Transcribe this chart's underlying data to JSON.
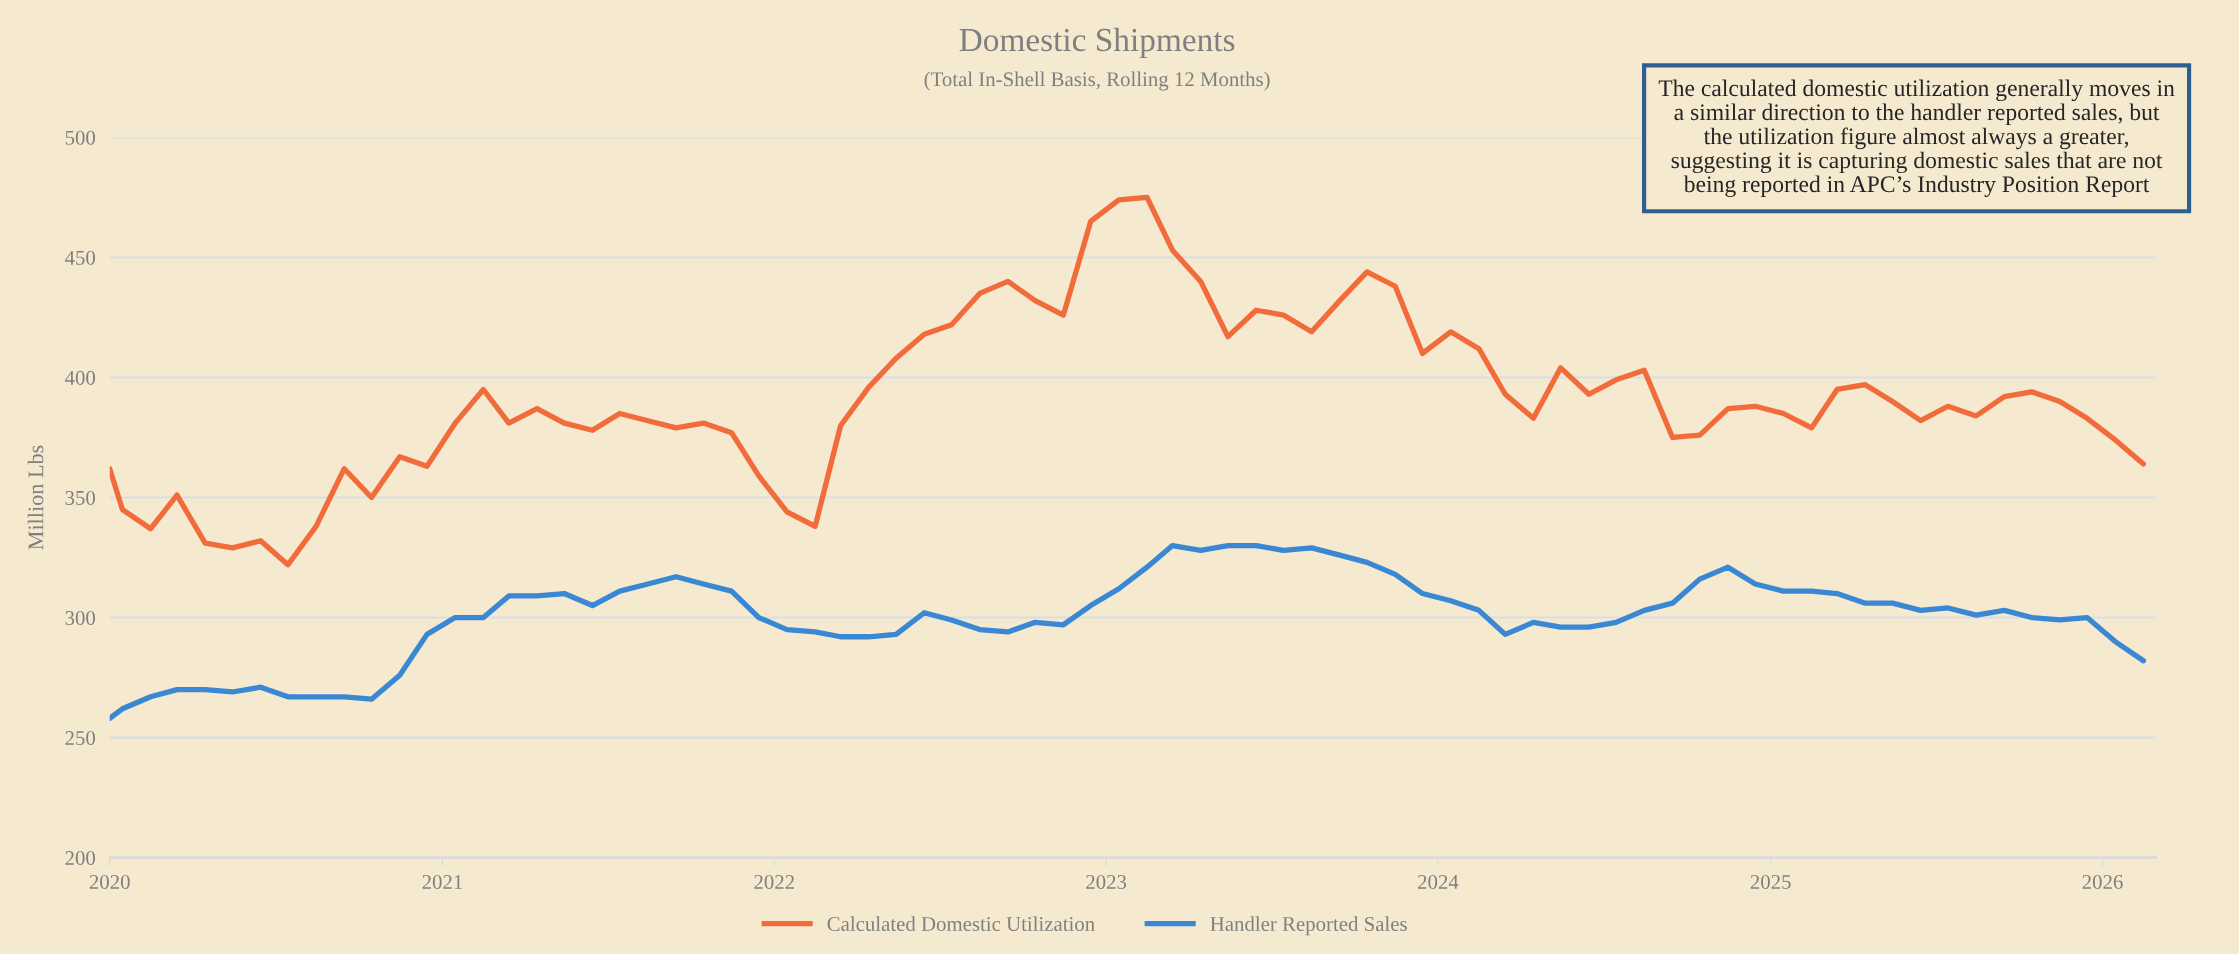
{
  "chart_data": {
    "type": "line",
    "title": "Domestic Shipments",
    "subtitle": "(Total In-Shell Basis, Rolling 12 Months)",
    "ylabel": "Million Lbs",
    "annotations": [
      "The calculated domestic utilization generally moves in a similar direction to the handler reported sales, but the utilization figure almost always a greater, suggesting it is capturing domestic sales that are not being reported in APC’s Industry Position Report"
    ],
    "x": [
      "2020-01-01",
      "2020-01-15",
      "2020-02-15",
      "2020-03-15",
      "2020-04-15",
      "2020-05-15",
      "2020-06-15",
      "2020-07-15",
      "2020-08-15",
      "2020-09-15",
      "2020-10-15",
      "2020-11-15",
      "2020-12-15",
      "2021-01-15",
      "2021-02-15",
      "2021-03-15",
      "2021-04-15",
      "2021-05-15",
      "2021-06-15",
      "2021-07-15",
      "2021-08-15",
      "2021-09-15",
      "2021-10-15",
      "2021-11-15",
      "2021-12-15",
      "2022-01-15",
      "2022-02-15",
      "2022-03-15",
      "2022-04-15",
      "2022-05-15",
      "2022-06-15",
      "2022-07-15",
      "2022-08-15",
      "2022-09-15",
      "2022-10-15",
      "2022-11-15",
      "2022-12-15",
      "2023-01-15",
      "2023-02-15",
      "2023-03-15",
      "2023-04-15",
      "2023-05-15",
      "2023-06-15",
      "2023-07-15",
      "2023-08-15",
      "2023-09-15",
      "2023-10-15",
      "2023-11-15",
      "2023-12-15",
      "2024-01-15",
      "2024-02-15",
      "2024-03-15",
      "2024-04-15",
      "2024-05-15",
      "2024-06-15",
      "2024-07-15",
      "2024-08-15",
      "2024-09-15",
      "2024-10-15",
      "2024-11-15",
      "2024-12-15",
      "2025-01-15",
      "2025-02-15",
      "2025-03-15",
      "2025-04-15",
      "2025-05-15",
      "2025-06-15",
      "2025-07-15",
      "2025-08-15",
      "2025-09-15",
      "2025-10-15",
      "2025-11-15",
      "2025-12-15",
      "2026-01-15",
      "2026-02-15"
    ],
    "series": [
      {
        "name": "Calculated Domestic Utilization",
        "color": "#f26b3a",
        "values": [
          362,
          345,
          337,
          351,
          331,
          329,
          332,
          322,
          338,
          362,
          350,
          367,
          363,
          381,
          395,
          381,
          387,
          381,
          378,
          385,
          382,
          379,
          381,
          377,
          359,
          344,
          338,
          380,
          396,
          408,
          418,
          422,
          435,
          440,
          432,
          426,
          465,
          474,
          475,
          453,
          440,
          417,
          428,
          426,
          419,
          432,
          444,
          438,
          410,
          419,
          412,
          393,
          383,
          404,
          393,
          399,
          403,
          375,
          376,
          387,
          388,
          385,
          379,
          395,
          397,
          390,
          382,
          388,
          384,
          392,
          394,
          390,
          383,
          374,
          364
        ]
      },
      {
        "name": "Handler Reported Sales",
        "color": "#3a87d4",
        "values": [
          258,
          262,
          267,
          270,
          270,
          269,
          271,
          267,
          267,
          267,
          266,
          276,
          293,
          300,
          300,
          309,
          309,
          310,
          305,
          311,
          314,
          317,
          314,
          311,
          300,
          295,
          294,
          292,
          292,
          293,
          302,
          299,
          295,
          294,
          298,
          297,
          305,
          312,
          321,
          330,
          328,
          330,
          330,
          328,
          329,
          326,
          323,
          318,
          310,
          307,
          303,
          293,
          298,
          296,
          296,
          298,
          303,
          306,
          316,
          321,
          314,
          311,
          311,
          310,
          306,
          306,
          303,
          304,
          301,
          303,
          300,
          299,
          300,
          290,
          282
        ]
      }
    ],
    "xlim": [
      "2020-01-01",
      "2026-03-01"
    ],
    "xticks": [
      {
        "value": "2020-01-01",
        "label": "2020"
      },
      {
        "value": "2021-01-01",
        "label": "2021"
      },
      {
        "value": "2022-01-01",
        "label": "2022"
      },
      {
        "value": "2023-01-01",
        "label": "2023"
      },
      {
        "value": "2024-01-01",
        "label": "2024"
      },
      {
        "value": "2025-01-01",
        "label": "2025"
      },
      {
        "value": "2026-01-01",
        "label": "2026"
      }
    ],
    "ylim": [
      200,
      500
    ],
    "yticks": [
      200,
      250,
      300,
      350,
      400,
      450,
      500
    ],
    "grid": "y",
    "legend": "bottom",
    "marker": "none",
    "line_style": "solid"
  }
}
